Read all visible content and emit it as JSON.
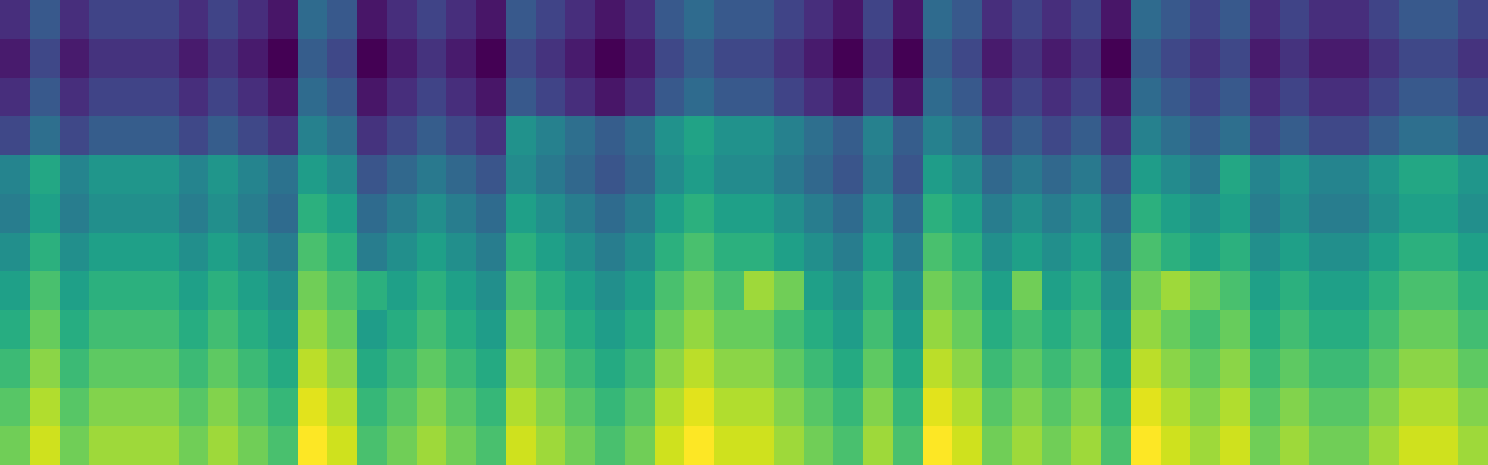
{
  "chart_data": {
    "type": "heatmap",
    "tick_labels": false,
    "cells": [
      [
        0.3,
        0.4,
        0.3,
        0.35,
        0.35,
        0.35,
        0.3,
        0.35,
        0.3,
        0.25,
        0.45,
        0.4,
        0.25,
        0.3,
        0.35,
        0.3,
        0.25,
        0.4,
        0.35,
        0.3,
        0.25,
        0.3,
        0.4,
        0.45,
        0.4,
        0.4,
        0.35,
        0.3,
        0.25,
        0.35,
        0.25,
        0.45,
        0.4,
        0.3,
        0.35,
        0.3,
        0.35,
        0.25,
        0.45,
        0.4,
        0.35,
        0.4,
        0.3,
        0.35,
        0.3,
        0.3,
        0.35,
        0.4,
        0.4,
        0.35
      ],
      [
        0.26,
        0.36,
        0.26,
        0.31,
        0.31,
        0.31,
        0.26,
        0.31,
        0.26,
        0.21,
        0.41,
        0.36,
        0.21,
        0.26,
        0.31,
        0.26,
        0.21,
        0.36,
        0.31,
        0.26,
        0.21,
        0.26,
        0.36,
        0.41,
        0.36,
        0.36,
        0.31,
        0.26,
        0.21,
        0.31,
        0.21,
        0.41,
        0.36,
        0.26,
        0.31,
        0.26,
        0.31,
        0.21,
        0.41,
        0.36,
        0.31,
        0.36,
        0.26,
        0.31,
        0.26,
        0.26,
        0.31,
        0.36,
        0.36,
        0.31
      ],
      [
        0.3,
        0.4,
        0.3,
        0.35,
        0.35,
        0.35,
        0.3,
        0.35,
        0.3,
        0.25,
        0.45,
        0.4,
        0.25,
        0.3,
        0.35,
        0.3,
        0.25,
        0.4,
        0.35,
        0.3,
        0.25,
        0.3,
        0.4,
        0.45,
        0.4,
        0.4,
        0.35,
        0.3,
        0.25,
        0.35,
        0.25,
        0.45,
        0.4,
        0.3,
        0.35,
        0.3,
        0.35,
        0.25,
        0.45,
        0.4,
        0.35,
        0.4,
        0.3,
        0.35,
        0.3,
        0.3,
        0.35,
        0.4,
        0.4,
        0.35
      ],
      [
        0.36,
        0.46,
        0.36,
        0.41,
        0.41,
        0.41,
        0.36,
        0.41,
        0.36,
        0.31,
        0.51,
        0.46,
        0.31,
        0.36,
        0.41,
        0.36,
        0.31,
        0.56,
        0.51,
        0.46,
        0.41,
        0.46,
        0.56,
        0.61,
        0.56,
        0.56,
        0.51,
        0.46,
        0.41,
        0.51,
        0.41,
        0.51,
        0.46,
        0.36,
        0.41,
        0.36,
        0.41,
        0.31,
        0.51,
        0.46,
        0.41,
        0.46,
        0.36,
        0.41,
        0.36,
        0.36,
        0.41,
        0.46,
        0.46,
        0.41
      ],
      [
        0.52,
        0.62,
        0.52,
        0.57,
        0.57,
        0.57,
        0.52,
        0.57,
        0.52,
        0.47,
        0.59,
        0.54,
        0.39,
        0.44,
        0.49,
        0.44,
        0.39,
        0.54,
        0.49,
        0.44,
        0.39,
        0.44,
        0.54,
        0.59,
        0.54,
        0.54,
        0.49,
        0.44,
        0.39,
        0.49,
        0.39,
        0.59,
        0.54,
        0.44,
        0.49,
        0.44,
        0.49,
        0.39,
        0.59,
        0.54,
        0.49,
        0.62,
        0.52,
        0.57,
        0.52,
        0.52,
        0.57,
        0.62,
        0.62,
        0.57
      ],
      [
        0.5,
        0.6,
        0.5,
        0.55,
        0.55,
        0.55,
        0.5,
        0.55,
        0.5,
        0.45,
        0.65,
        0.6,
        0.45,
        0.5,
        0.55,
        0.5,
        0.45,
        0.6,
        0.55,
        0.5,
        0.45,
        0.5,
        0.6,
        0.65,
        0.6,
        0.6,
        0.55,
        0.5,
        0.45,
        0.55,
        0.45,
        0.65,
        0.6,
        0.5,
        0.55,
        0.5,
        0.55,
        0.45,
        0.65,
        0.6,
        0.55,
        0.6,
        0.5,
        0.55,
        0.5,
        0.5,
        0.55,
        0.6,
        0.6,
        0.55
      ],
      [
        0.55,
        0.65,
        0.55,
        0.6,
        0.6,
        0.6,
        0.55,
        0.6,
        0.55,
        0.5,
        0.7,
        0.65,
        0.5,
        0.55,
        0.6,
        0.55,
        0.5,
        0.65,
        0.6,
        0.55,
        0.5,
        0.55,
        0.65,
        0.7,
        0.65,
        0.65,
        0.6,
        0.55,
        0.5,
        0.6,
        0.5,
        0.7,
        0.65,
        0.55,
        0.6,
        0.55,
        0.6,
        0.5,
        0.7,
        0.65,
        0.6,
        0.65,
        0.55,
        0.6,
        0.55,
        0.55,
        0.6,
        0.65,
        0.65,
        0.6
      ],
      [
        0.6,
        0.7,
        0.6,
        0.65,
        0.65,
        0.65,
        0.6,
        0.65,
        0.6,
        0.55,
        0.75,
        0.7,
        0.65,
        0.6,
        0.65,
        0.6,
        0.55,
        0.7,
        0.65,
        0.6,
        0.55,
        0.6,
        0.7,
        0.75,
        0.7,
        0.8,
        0.75,
        0.6,
        0.55,
        0.65,
        0.55,
        0.75,
        0.7,
        0.6,
        0.75,
        0.6,
        0.65,
        0.55,
        0.75,
        0.8,
        0.75,
        0.7,
        0.6,
        0.65,
        0.6,
        0.6,
        0.65,
        0.7,
        0.7,
        0.65
      ],
      [
        0.64,
        0.74,
        0.64,
        0.69,
        0.69,
        0.69,
        0.64,
        0.69,
        0.64,
        0.59,
        0.79,
        0.74,
        0.59,
        0.64,
        0.69,
        0.64,
        0.59,
        0.74,
        0.69,
        0.64,
        0.59,
        0.64,
        0.74,
        0.79,
        0.74,
        0.74,
        0.69,
        0.64,
        0.59,
        0.69,
        0.59,
        0.79,
        0.74,
        0.64,
        0.69,
        0.64,
        0.69,
        0.59,
        0.79,
        0.74,
        0.69,
        0.74,
        0.64,
        0.69,
        0.64,
        0.64,
        0.69,
        0.74,
        0.74,
        0.69
      ],
      [
        0.68,
        0.78,
        0.68,
        0.73,
        0.73,
        0.73,
        0.68,
        0.73,
        0.68,
        0.63,
        0.83,
        0.78,
        0.63,
        0.68,
        0.73,
        0.68,
        0.63,
        0.78,
        0.73,
        0.68,
        0.63,
        0.68,
        0.78,
        0.83,
        0.78,
        0.78,
        0.73,
        0.68,
        0.63,
        0.73,
        0.63,
        0.83,
        0.78,
        0.68,
        0.73,
        0.68,
        0.73,
        0.63,
        0.83,
        0.78,
        0.73,
        0.78,
        0.68,
        0.73,
        0.68,
        0.68,
        0.73,
        0.78,
        0.78,
        0.73
      ],
      [
        0.72,
        0.82,
        0.72,
        0.77,
        0.77,
        0.77,
        0.72,
        0.77,
        0.72,
        0.67,
        0.87,
        0.82,
        0.67,
        0.72,
        0.77,
        0.72,
        0.67,
        0.82,
        0.77,
        0.72,
        0.67,
        0.72,
        0.82,
        0.87,
        0.82,
        0.82,
        0.77,
        0.72,
        0.67,
        0.77,
        0.67,
        0.87,
        0.82,
        0.72,
        0.77,
        0.72,
        0.77,
        0.67,
        0.87,
        0.82,
        0.77,
        0.82,
        0.72,
        0.77,
        0.72,
        0.72,
        0.77,
        0.82,
        0.82,
        0.77
      ],
      [
        0.75,
        0.85,
        0.75,
        0.8,
        0.8,
        0.8,
        0.75,
        0.8,
        0.75,
        0.7,
        0.9,
        0.85,
        0.7,
        0.75,
        0.8,
        0.75,
        0.7,
        0.85,
        0.8,
        0.75,
        0.7,
        0.75,
        0.85,
        0.9,
        0.85,
        0.85,
        0.8,
        0.75,
        0.7,
        0.8,
        0.7,
        0.9,
        0.85,
        0.75,
        0.8,
        0.75,
        0.8,
        0.7,
        0.9,
        0.85,
        0.8,
        0.85,
        0.75,
        0.8,
        0.75,
        0.75,
        0.8,
        0.85,
        0.85,
        0.8
      ]
    ]
  }
}
